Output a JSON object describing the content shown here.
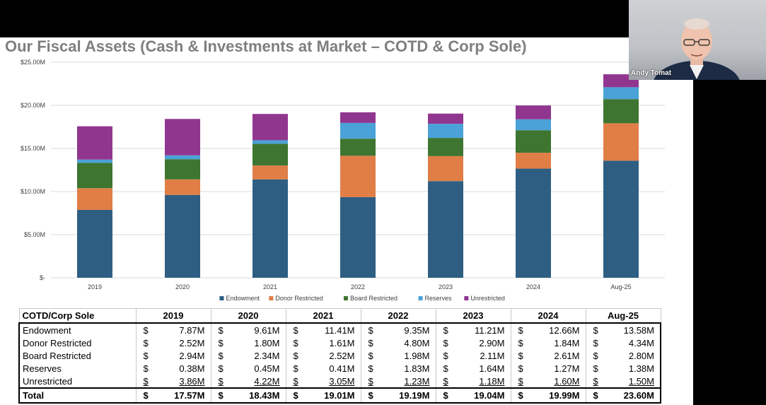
{
  "slide": {
    "title": "Our Fiscal Assets (Cash & Investments at Market – COTD & Corp Sole)"
  },
  "chart_data": {
    "type": "bar",
    "stacked": true,
    "categories": [
      "2019",
      "2020",
      "2021",
      "2022",
      "2023",
      "2024",
      "Aug-25"
    ],
    "series": [
      {
        "name": "Endowment",
        "color": "#2e5f83",
        "values": [
          7.87,
          9.61,
          11.41,
          9.35,
          11.21,
          12.66,
          13.58
        ]
      },
      {
        "name": "Donor Restricted",
        "color": "#e07e46",
        "values": [
          2.52,
          1.8,
          1.61,
          4.8,
          2.9,
          1.84,
          4.34
        ]
      },
      {
        "name": "Board Restricted",
        "color": "#3e7530",
        "values": [
          2.94,
          2.34,
          2.52,
          1.98,
          2.11,
          2.61,
          2.8
        ]
      },
      {
        "name": "Reserves",
        "color": "#4aa2d8",
        "values": [
          0.38,
          0.45,
          0.41,
          1.83,
          1.64,
          1.27,
          1.38
        ]
      },
      {
        "name": "Unrestricted",
        "color": "#91368f",
        "values": [
          3.86,
          4.22,
          3.05,
          1.23,
          1.18,
          1.6,
          1.5
        ]
      }
    ],
    "yticks": [
      "$-",
      "$5.00M",
      "$10.00M",
      "$15.00M",
      "$20.00M",
      "$25.00M"
    ],
    "ylim": [
      0,
      25
    ],
    "grid": true,
    "legend_position": "bottom"
  },
  "table": {
    "header_label": "COTD/Corp Sole",
    "years": [
      "2019",
      "2020",
      "2021",
      "2022",
      "2023",
      "2024",
      "Aug-25"
    ],
    "currency": "$",
    "rows": [
      {
        "label": "Endowment",
        "values": [
          "7.87M",
          "9.61M",
          "11.41M",
          "9.35M",
          "11.21M",
          "12.66M",
          "13.58M"
        ]
      },
      {
        "label": "Donor Restricted",
        "values": [
          "2.52M",
          "1.80M",
          "1.61M",
          "4.80M",
          "2.90M",
          "1.84M",
          "4.34M"
        ]
      },
      {
        "label": "Board Restricted",
        "values": [
          "2.94M",
          "2.34M",
          "2.52M",
          "1.98M",
          "2.11M",
          "2.61M",
          "2.80M"
        ]
      },
      {
        "label": "Reserves",
        "values": [
          "0.38M",
          "0.45M",
          "0.41M",
          "1.83M",
          "1.64M",
          "1.27M",
          "1.38M"
        ]
      },
      {
        "label": "Unrestricted",
        "values": [
          "3.86M",
          "4.22M",
          "3.05M",
          "1.23M",
          "1.18M",
          "1.60M",
          "1.50M"
        ]
      }
    ],
    "total": {
      "label": "Total",
      "values": [
        "17.57M",
        "18.43M",
        "19.01M",
        "19.19M",
        "19.04M",
        "19.99M",
        "23.60M"
      ]
    }
  },
  "webcam": {
    "participant_name": "Andy Tomat"
  }
}
